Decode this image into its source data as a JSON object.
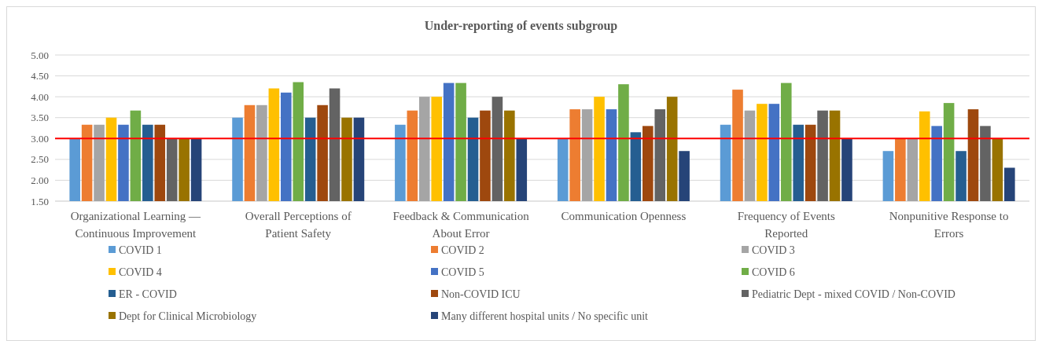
{
  "chart_data": {
    "type": "bar",
    "title": "Under-reporting of events subgroup",
    "categories": [
      "Organizational Learning — Continuous Improvement",
      "Overall Perceptions of Patient Safety",
      "Feedback & Communication About Error",
      "Communication Openness",
      "Frequency of Events Reported",
      "Nonpunitive Response to Errors"
    ],
    "series": [
      {
        "name": "COVID 1",
        "color": "#5b9bd5",
        "values": [
          3.0,
          3.5,
          3.33,
          3.0,
          3.33,
          2.7
        ]
      },
      {
        "name": "COVID 2",
        "color": "#ed7d31",
        "values": [
          3.33,
          3.8,
          3.67,
          3.7,
          4.17,
          3.0
        ]
      },
      {
        "name": "COVID 3",
        "color": "#a5a5a5",
        "values": [
          3.33,
          3.8,
          4.0,
          3.7,
          3.67,
          3.0
        ]
      },
      {
        "name": "COVID 4",
        "color": "#ffc000",
        "values": [
          3.5,
          4.2,
          4.0,
          4.0,
          3.83,
          3.65
        ]
      },
      {
        "name": "COVID 5",
        "color": "#4472c4",
        "values": [
          3.33,
          4.1,
          4.33,
          3.7,
          3.83,
          3.3
        ]
      },
      {
        "name": "COVID  6",
        "color": "#70ad47",
        "values": [
          3.67,
          4.35,
          4.33,
          4.3,
          4.33,
          3.85
        ]
      },
      {
        "name": "ER - COVID",
        "color": "#255e91",
        "values": [
          3.33,
          3.5,
          3.5,
          3.15,
          3.33,
          2.7
        ]
      },
      {
        "name": "Non-COVID ICU",
        "color": "#9e480e",
        "values": [
          3.33,
          3.8,
          3.67,
          3.3,
          3.33,
          3.7
        ]
      },
      {
        "name": "Pediatric Dept - mixed COVID / Non-COVID",
        "color": "#636363",
        "values": [
          3.0,
          4.2,
          4.0,
          3.7,
          3.67,
          3.3
        ]
      },
      {
        "name": "Dept for Clinical Microbiology",
        "color": "#997300",
        "values": [
          3.0,
          3.5,
          3.67,
          4.0,
          3.67,
          3.0
        ]
      },
      {
        "name": "Many different hospital units / No specific unit",
        "color": "#264478",
        "values": [
          3.0,
          3.5,
          3.0,
          2.7,
          3.0,
          2.3
        ]
      }
    ],
    "ylim": [
      1.5,
      5.0
    ],
    "yticks": [
      {
        "value": 1.5,
        "label": "1.50"
      },
      {
        "value": 2.0,
        "label": "2.00"
      },
      {
        "value": 2.5,
        "label": "2.50"
      },
      {
        "value": 3.0,
        "label": "3.00"
      },
      {
        "value": 3.5,
        "label": "3.50"
      },
      {
        "value": 4.0,
        "label": "4.00"
      },
      {
        "value": 4.5,
        "label": "4.50"
      },
      {
        "value": 5.0,
        "label": "5.00"
      }
    ],
    "grid": "y",
    "legend": "bottom",
    "ref_lines": [
      {
        "axis": "y",
        "value": 3.0,
        "color": "#ff0000"
      }
    ]
  }
}
